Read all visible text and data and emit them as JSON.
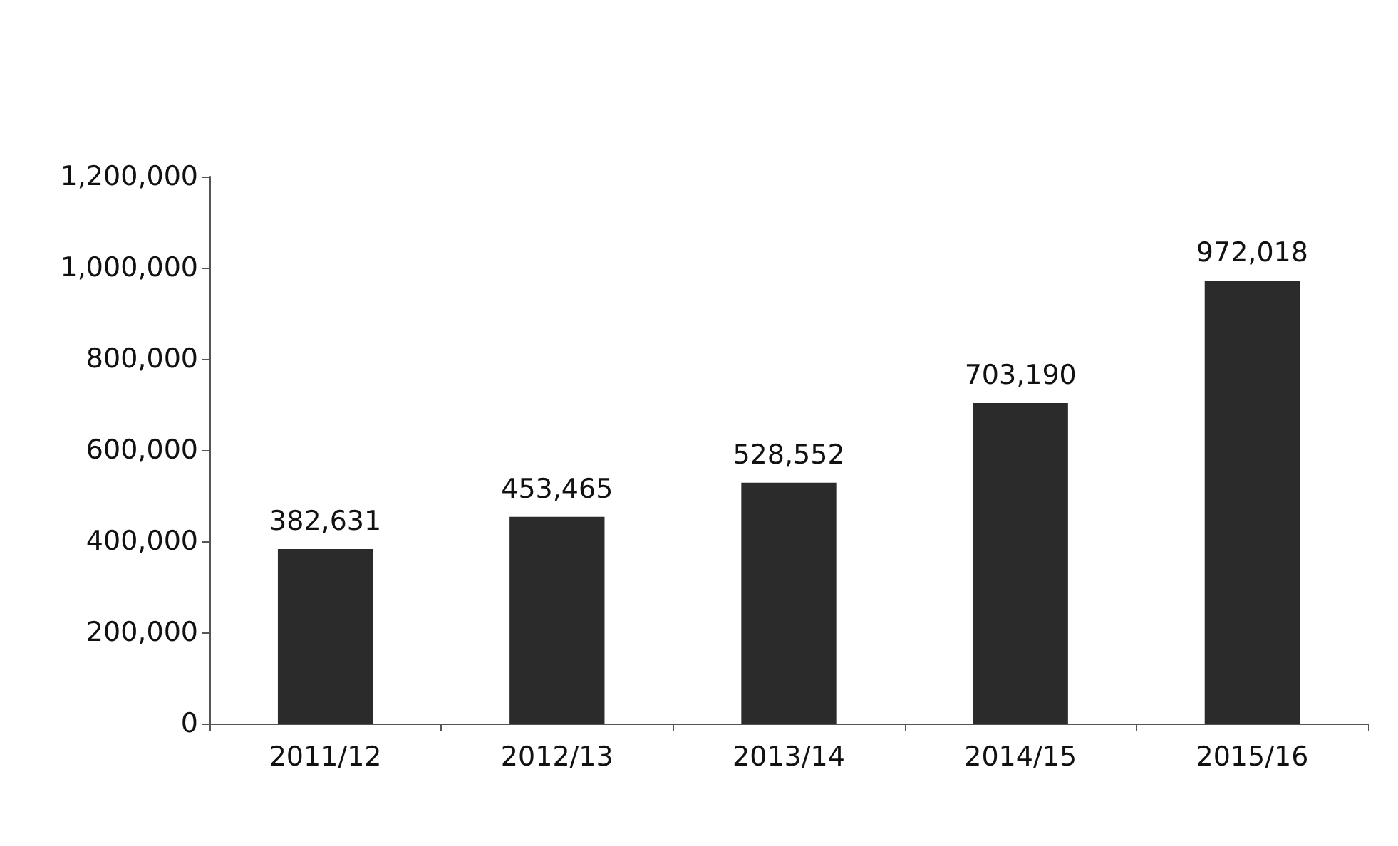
{
  "chart_data": {
    "type": "bar",
    "categories": [
      "2011/12",
      "2012/13",
      "2013/14",
      "2014/15",
      "2015/16"
    ],
    "values": [
      382631,
      453465,
      528552,
      703190,
      972018
    ],
    "value_labels": [
      "382,631",
      "453,465",
      "528,552",
      "703,190",
      "972,018"
    ],
    "color": "#2b2b2b",
    "ylim": [
      0,
      1200000
    ],
    "yticks": [
      0,
      {
        "value": 200000,
        "label": "200,000"
      },
      {
        "value": 400000,
        "label": "400,000"
      },
      {
        "value": 600000,
        "label": "600,000"
      },
      {
        "value": 800000,
        "label": "800,000"
      },
      {
        "value": 1000000,
        "label": "1,000,000"
      },
      {
        "value": 1200000,
        "label": "1,200,000"
      }
    ],
    "grid": false
  }
}
